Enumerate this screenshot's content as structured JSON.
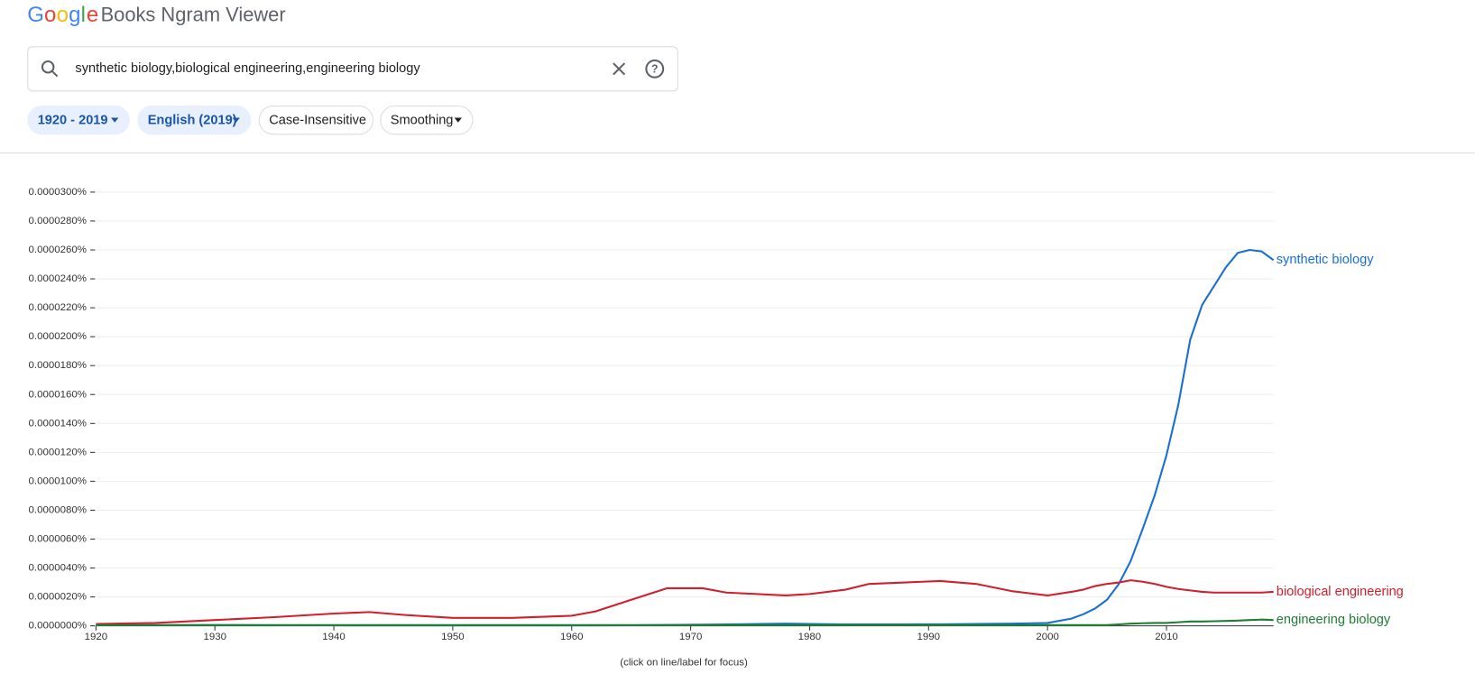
{
  "header": {
    "logo": [
      "G",
      "o",
      "o",
      "g",
      "l",
      "e"
    ],
    "title": "Books Ngram Viewer"
  },
  "search": {
    "query": "synthetic biology,biological engineering,engineering biology"
  },
  "filters": [
    "1920 - 2019",
    "English (2019)",
    "Case-Insensitive",
    "Smoothing"
  ],
  "chart_data": {
    "type": "line",
    "x": [
      1920,
      1925,
      1930,
      1935,
      1940,
      1943,
      1946,
      1950,
      1955,
      1960,
      1962,
      1965,
      1968,
      1971,
      1973,
      1978,
      1980,
      1983,
      1985,
      1988,
      1991,
      1994,
      1997,
      2000,
      2002,
      2003,
      2004,
      2005,
      2006,
      2007,
      2008,
      2009,
      2010,
      2011,
      2012,
      2013,
      2014,
      2015,
      2016,
      2017,
      2018,
      2019
    ],
    "series": [
      {
        "name": "synthetic biology",
        "color": "#1a6fd0",
        "values": [
          5e-08,
          4e-08,
          5e-08,
          4e-08,
          4e-08,
          3e-08,
          3e-08,
          3e-08,
          3e-08,
          3e-08,
          3e-08,
          4e-08,
          6e-08,
          8e-08,
          1e-07,
          1.5e-07,
          1.3e-07,
          1e-07,
          1e-07,
          1e-07,
          1.1e-07,
          1.3e-07,
          1.5e-07,
          2e-07,
          5e-07,
          8e-07,
          1.2e-06,
          1.8e-06,
          2.9e-06,
          4.5e-06,
          6.7e-06,
          9e-06,
          1.18e-05,
          1.53e-05,
          1.98e-05,
          2.22e-05,
          2.35e-05,
          2.48e-05,
          2.58e-05,
          2.6e-05,
          2.59e-05,
          2.53e-05
        ]
      },
      {
        "name": "biological engineering",
        "color": "#d0202e",
        "values": [
          1.3e-07,
          2e-07,
          4e-07,
          6e-07,
          8.5e-07,
          9.5e-07,
          7.5e-07,
          5.5e-07,
          5.5e-07,
          7e-07,
          1e-06,
          1.8e-06,
          2.6e-06,
          2.6e-06,
          2.3e-06,
          2.1e-06,
          2.2e-06,
          2.5e-06,
          2.9e-06,
          3e-06,
          3.1e-06,
          2.9e-06,
          2.4e-06,
          2.1e-06,
          2.35e-06,
          2.5e-06,
          2.75e-06,
          2.9e-06,
          3e-06,
          3.15e-06,
          3.05e-06,
          2.9e-06,
          2.7e-06,
          2.55e-06,
          2.45e-06,
          2.35e-06,
          2.3e-06,
          2.3e-06,
          2.3e-06,
          2.3e-06,
          2.3e-06,
          2.35e-06
        ]
      },
      {
        "name": "engineering biology",
        "color": "#1e7e34",
        "values": [
          5e-08,
          5e-08,
          5e-08,
          5e-08,
          5e-08,
          5e-08,
          5e-08,
          5e-08,
          5e-08,
          5e-08,
          5e-08,
          5e-08,
          5e-08,
          5e-08,
          5e-08,
          5e-08,
          5e-08,
          5e-08,
          5e-08,
          5e-08,
          5e-08,
          5e-08,
          5e-08,
          5e-08,
          5e-08,
          5e-08,
          5e-08,
          5e-08,
          1e-07,
          1.5e-07,
          1.8e-07,
          2e-07,
          2e-07,
          2.5e-07,
          3e-07,
          3e-07,
          3.2e-07,
          3.4e-07,
          3.6e-07,
          4e-07,
          4.3e-07,
          4e-07
        ]
      }
    ],
    "xlim": [
      1920,
      2019
    ],
    "xticks": [
      1920,
      1930,
      1940,
      1950,
      1960,
      1970,
      1980,
      1990,
      2000,
      2010
    ],
    "ylim": [
      0,
      3e-05
    ],
    "yticks": [
      {
        "value": 0,
        "label": "0.0000000%"
      },
      {
        "value": 2e-06,
        "label": "0.0000020%"
      },
      {
        "value": 4e-06,
        "label": "0.0000040%"
      },
      {
        "value": 6e-06,
        "label": "0.0000060%"
      },
      {
        "value": 8e-06,
        "label": "0.0000080%"
      },
      {
        "value": 1e-05,
        "label": "0.0000100%"
      },
      {
        "value": 1.2e-05,
        "label": "0.0000120%"
      },
      {
        "value": 1.4e-05,
        "label": "0.0000140%"
      },
      {
        "value": 1.6e-05,
        "label": "0.0000160%"
      },
      {
        "value": 1.8e-05,
        "label": "0.0000180%"
      },
      {
        "value": 2e-05,
        "label": "0.0000200%"
      },
      {
        "value": 2.2e-05,
        "label": "0.0000220%"
      },
      {
        "value": 2.4e-05,
        "label": "0.0000240%"
      },
      {
        "value": 2.6e-05,
        "label": "0.0000260%"
      },
      {
        "value": 2.8e-05,
        "label": "0.0000280%"
      },
      {
        "value": 3e-05,
        "label": "0.0000300%"
      }
    ],
    "grid": true
  },
  "footnote": "(click on line/label for focus)"
}
